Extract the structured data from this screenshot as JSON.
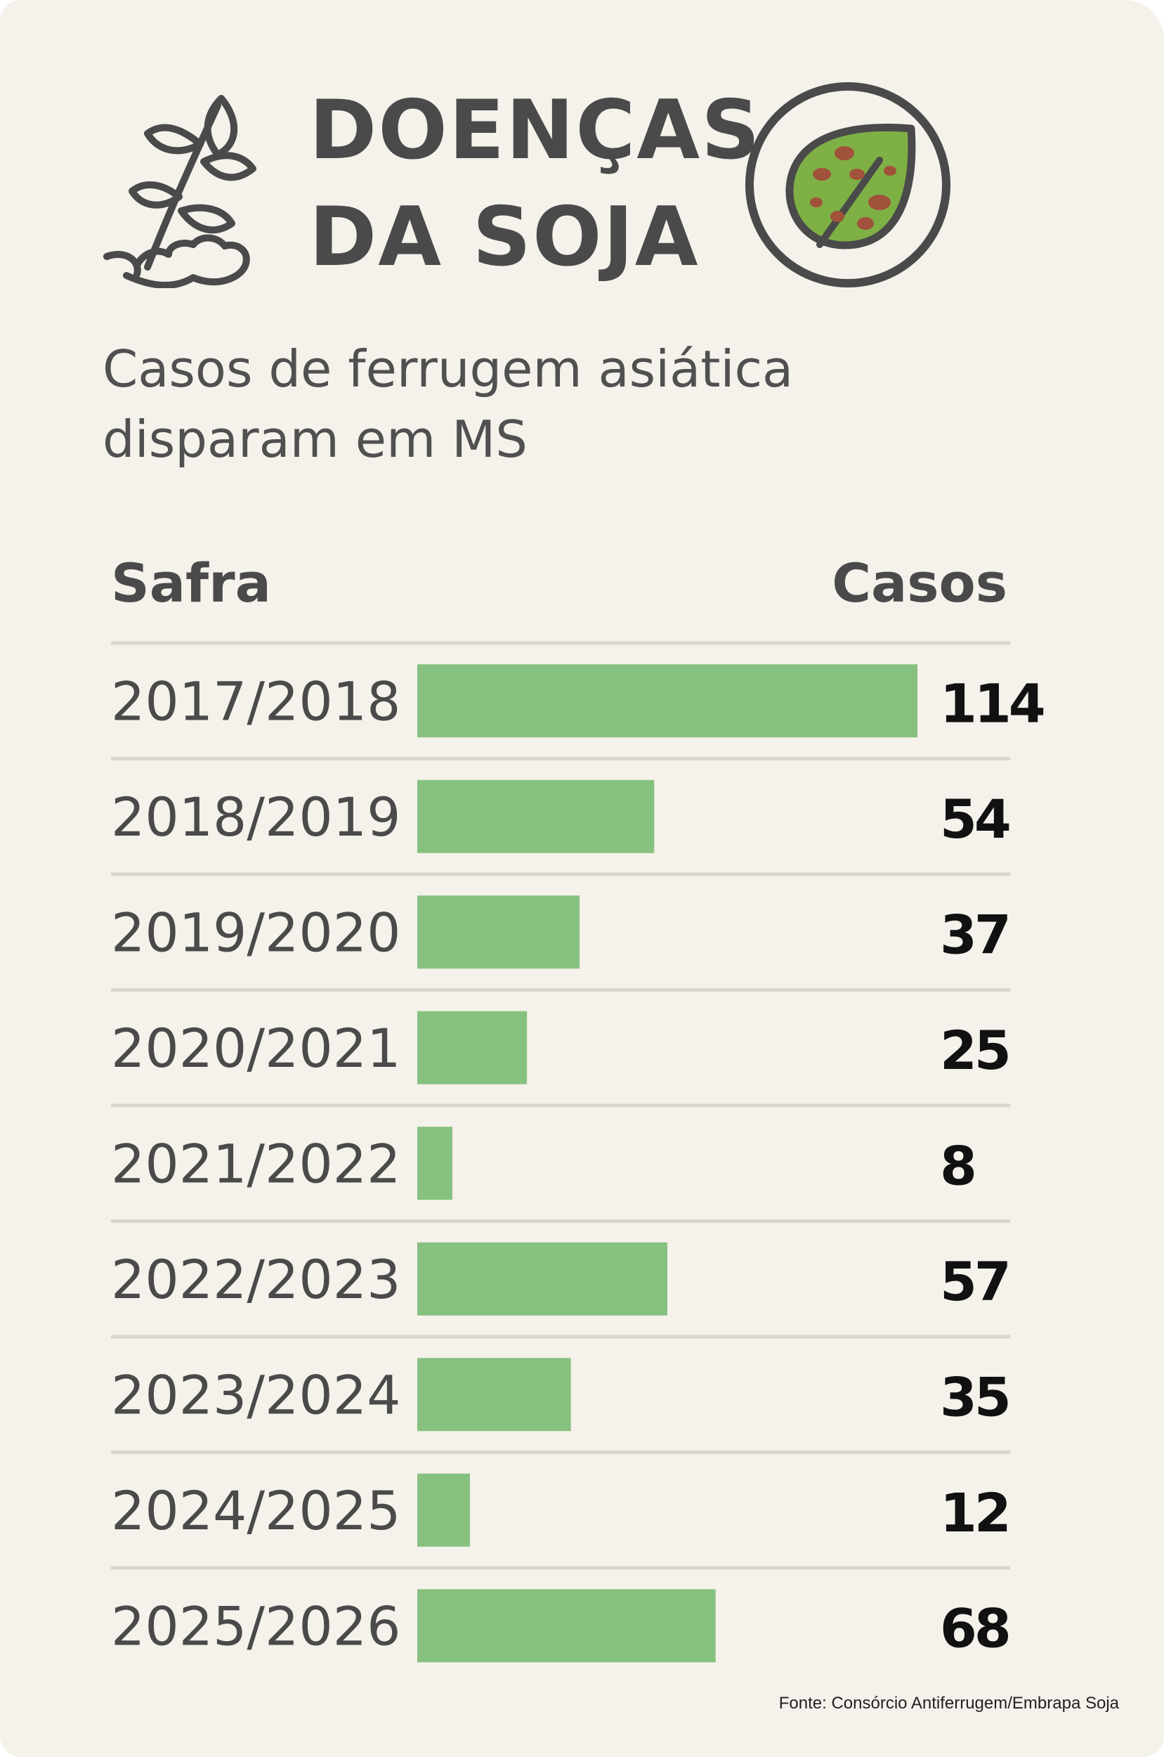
{
  "header": {
    "title": "DOENÇAS DA SOJA",
    "subtitle": "Casos de ferrugem asiática disparam em MS",
    "icons": [
      "soy-plant-icon",
      "diseased-leaf-icon"
    ]
  },
  "colors": {
    "background": "#f5f1eb",
    "bar": "#87c17f",
    "text_dark": "#4a4a4a",
    "value_text": "#111111",
    "divider": "#d9d5cf",
    "leaf_fill": "#7fb046",
    "spot": "#a0523a"
  },
  "chart_data": {
    "type": "bar",
    "orientation": "horizontal",
    "column_headers": {
      "category": "Safra",
      "value": "Casos"
    },
    "categories": [
      "2017/2018",
      "2018/2019",
      "2019/2020",
      "2020/2021",
      "2021/2022",
      "2022/2023",
      "2023/2024",
      "2024/2025",
      "2025/2026"
    ],
    "values": [
      114,
      54,
      37,
      25,
      8,
      57,
      35,
      12,
      68
    ],
    "xlim": [
      0,
      114
    ],
    "grid": false,
    "legend": "none"
  },
  "footer": {
    "source": "Fonte: Consórcio Antiferrugem/Embrapa Soja"
  }
}
